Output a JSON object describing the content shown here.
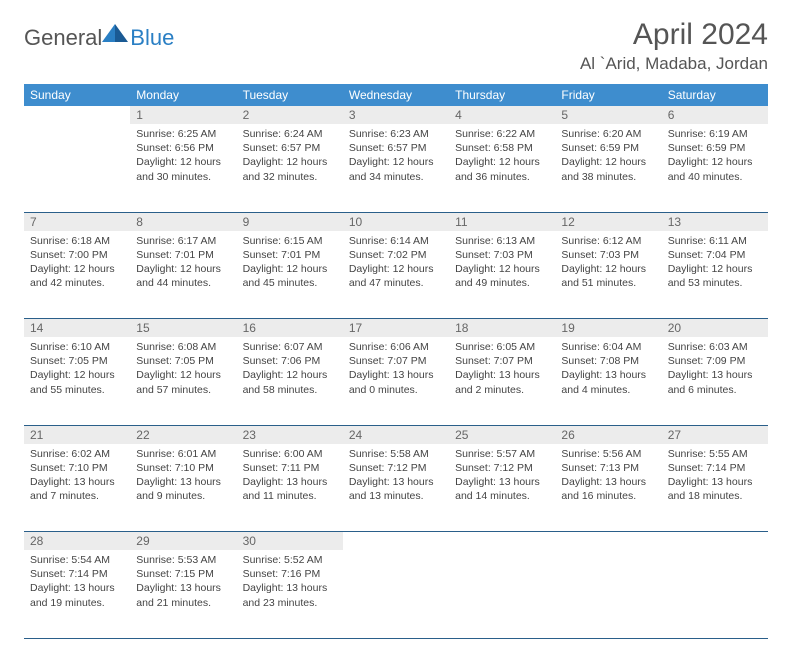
{
  "brand": {
    "part1": "General",
    "part2": "Blue"
  },
  "title": "April 2024",
  "location": "Al `Arid, Madaba, Jordan",
  "colors": {
    "header_bg": "#3e8dce",
    "header_fg": "#ffffff",
    "daynum_bg": "#ececec",
    "border": "#2a5f8a",
    "text": "#444444",
    "title_fg": "#555555"
  },
  "day_headers": [
    "Sunday",
    "Monday",
    "Tuesday",
    "Wednesday",
    "Thursday",
    "Friday",
    "Saturday"
  ],
  "weeks": [
    [
      {
        "n": "",
        "sunrise": "",
        "sunset": "",
        "dayl1": "",
        "dayl2": ""
      },
      {
        "n": "1",
        "sunrise": "Sunrise: 6:25 AM",
        "sunset": "Sunset: 6:56 PM",
        "dayl1": "Daylight: 12 hours",
        "dayl2": "and 30 minutes."
      },
      {
        "n": "2",
        "sunrise": "Sunrise: 6:24 AM",
        "sunset": "Sunset: 6:57 PM",
        "dayl1": "Daylight: 12 hours",
        "dayl2": "and 32 minutes."
      },
      {
        "n": "3",
        "sunrise": "Sunrise: 6:23 AM",
        "sunset": "Sunset: 6:57 PM",
        "dayl1": "Daylight: 12 hours",
        "dayl2": "and 34 minutes."
      },
      {
        "n": "4",
        "sunrise": "Sunrise: 6:22 AM",
        "sunset": "Sunset: 6:58 PM",
        "dayl1": "Daylight: 12 hours",
        "dayl2": "and 36 minutes."
      },
      {
        "n": "5",
        "sunrise": "Sunrise: 6:20 AM",
        "sunset": "Sunset: 6:59 PM",
        "dayl1": "Daylight: 12 hours",
        "dayl2": "and 38 minutes."
      },
      {
        "n": "6",
        "sunrise": "Sunrise: 6:19 AM",
        "sunset": "Sunset: 6:59 PM",
        "dayl1": "Daylight: 12 hours",
        "dayl2": "and 40 minutes."
      }
    ],
    [
      {
        "n": "7",
        "sunrise": "Sunrise: 6:18 AM",
        "sunset": "Sunset: 7:00 PM",
        "dayl1": "Daylight: 12 hours",
        "dayl2": "and 42 minutes."
      },
      {
        "n": "8",
        "sunrise": "Sunrise: 6:17 AM",
        "sunset": "Sunset: 7:01 PM",
        "dayl1": "Daylight: 12 hours",
        "dayl2": "and 44 minutes."
      },
      {
        "n": "9",
        "sunrise": "Sunrise: 6:15 AM",
        "sunset": "Sunset: 7:01 PM",
        "dayl1": "Daylight: 12 hours",
        "dayl2": "and 45 minutes."
      },
      {
        "n": "10",
        "sunrise": "Sunrise: 6:14 AM",
        "sunset": "Sunset: 7:02 PM",
        "dayl1": "Daylight: 12 hours",
        "dayl2": "and 47 minutes."
      },
      {
        "n": "11",
        "sunrise": "Sunrise: 6:13 AM",
        "sunset": "Sunset: 7:03 PM",
        "dayl1": "Daylight: 12 hours",
        "dayl2": "and 49 minutes."
      },
      {
        "n": "12",
        "sunrise": "Sunrise: 6:12 AM",
        "sunset": "Sunset: 7:03 PM",
        "dayl1": "Daylight: 12 hours",
        "dayl2": "and 51 minutes."
      },
      {
        "n": "13",
        "sunrise": "Sunrise: 6:11 AM",
        "sunset": "Sunset: 7:04 PM",
        "dayl1": "Daylight: 12 hours",
        "dayl2": "and 53 minutes."
      }
    ],
    [
      {
        "n": "14",
        "sunrise": "Sunrise: 6:10 AM",
        "sunset": "Sunset: 7:05 PM",
        "dayl1": "Daylight: 12 hours",
        "dayl2": "and 55 minutes."
      },
      {
        "n": "15",
        "sunrise": "Sunrise: 6:08 AM",
        "sunset": "Sunset: 7:05 PM",
        "dayl1": "Daylight: 12 hours",
        "dayl2": "and 57 minutes."
      },
      {
        "n": "16",
        "sunrise": "Sunrise: 6:07 AM",
        "sunset": "Sunset: 7:06 PM",
        "dayl1": "Daylight: 12 hours",
        "dayl2": "and 58 minutes."
      },
      {
        "n": "17",
        "sunrise": "Sunrise: 6:06 AM",
        "sunset": "Sunset: 7:07 PM",
        "dayl1": "Daylight: 13 hours",
        "dayl2": "and 0 minutes."
      },
      {
        "n": "18",
        "sunrise": "Sunrise: 6:05 AM",
        "sunset": "Sunset: 7:07 PM",
        "dayl1": "Daylight: 13 hours",
        "dayl2": "and 2 minutes."
      },
      {
        "n": "19",
        "sunrise": "Sunrise: 6:04 AM",
        "sunset": "Sunset: 7:08 PM",
        "dayl1": "Daylight: 13 hours",
        "dayl2": "and 4 minutes."
      },
      {
        "n": "20",
        "sunrise": "Sunrise: 6:03 AM",
        "sunset": "Sunset: 7:09 PM",
        "dayl1": "Daylight: 13 hours",
        "dayl2": "and 6 minutes."
      }
    ],
    [
      {
        "n": "21",
        "sunrise": "Sunrise: 6:02 AM",
        "sunset": "Sunset: 7:10 PM",
        "dayl1": "Daylight: 13 hours",
        "dayl2": "and 7 minutes."
      },
      {
        "n": "22",
        "sunrise": "Sunrise: 6:01 AM",
        "sunset": "Sunset: 7:10 PM",
        "dayl1": "Daylight: 13 hours",
        "dayl2": "and 9 minutes."
      },
      {
        "n": "23",
        "sunrise": "Sunrise: 6:00 AM",
        "sunset": "Sunset: 7:11 PM",
        "dayl1": "Daylight: 13 hours",
        "dayl2": "and 11 minutes."
      },
      {
        "n": "24",
        "sunrise": "Sunrise: 5:58 AM",
        "sunset": "Sunset: 7:12 PM",
        "dayl1": "Daylight: 13 hours",
        "dayl2": "and 13 minutes."
      },
      {
        "n": "25",
        "sunrise": "Sunrise: 5:57 AM",
        "sunset": "Sunset: 7:12 PM",
        "dayl1": "Daylight: 13 hours",
        "dayl2": "and 14 minutes."
      },
      {
        "n": "26",
        "sunrise": "Sunrise: 5:56 AM",
        "sunset": "Sunset: 7:13 PM",
        "dayl1": "Daylight: 13 hours",
        "dayl2": "and 16 minutes."
      },
      {
        "n": "27",
        "sunrise": "Sunrise: 5:55 AM",
        "sunset": "Sunset: 7:14 PM",
        "dayl1": "Daylight: 13 hours",
        "dayl2": "and 18 minutes."
      }
    ],
    [
      {
        "n": "28",
        "sunrise": "Sunrise: 5:54 AM",
        "sunset": "Sunset: 7:14 PM",
        "dayl1": "Daylight: 13 hours",
        "dayl2": "and 19 minutes."
      },
      {
        "n": "29",
        "sunrise": "Sunrise: 5:53 AM",
        "sunset": "Sunset: 7:15 PM",
        "dayl1": "Daylight: 13 hours",
        "dayl2": "and 21 minutes."
      },
      {
        "n": "30",
        "sunrise": "Sunrise: 5:52 AM",
        "sunset": "Sunset: 7:16 PM",
        "dayl1": "Daylight: 13 hours",
        "dayl2": "and 23 minutes."
      },
      {
        "n": "",
        "sunrise": "",
        "sunset": "",
        "dayl1": "",
        "dayl2": ""
      },
      {
        "n": "",
        "sunrise": "",
        "sunset": "",
        "dayl1": "",
        "dayl2": ""
      },
      {
        "n": "",
        "sunrise": "",
        "sunset": "",
        "dayl1": "",
        "dayl2": ""
      },
      {
        "n": "",
        "sunrise": "",
        "sunset": "",
        "dayl1": "",
        "dayl2": ""
      }
    ]
  ]
}
